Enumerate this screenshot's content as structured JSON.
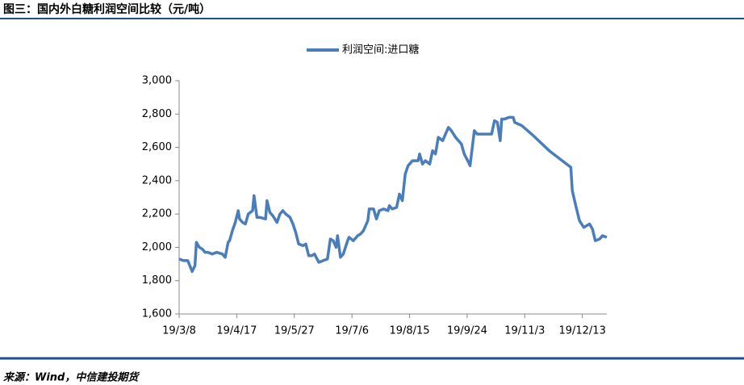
{
  "header_title": "图三：国内外白糖利润空间比较（元/吨）",
  "source": "来源：Wind，中信建投期货",
  "chart_data": {
    "type": "line",
    "x": [
      "19/3/8",
      "19/3/11",
      "19/3/14",
      "19/3/17",
      "19/3/19",
      "19/3/20",
      "19/3/22",
      "19/3/24",
      "19/3/26",
      "19/3/28",
      "19/3/31",
      "19/4/3",
      "19/4/7",
      "19/4/9",
      "19/4/11",
      "19/4/12",
      "19/4/14",
      "19/4/16",
      "19/4/18",
      "19/4/19",
      "19/4/21",
      "19/4/23",
      "19/4/25",
      "19/4/28",
      "19/4/29",
      "19/5/1",
      "19/5/3",
      "19/5/7",
      "19/5/8",
      "19/5/10",
      "19/5/12",
      "19/5/15",
      "19/5/17",
      "19/5/19",
      "19/5/21",
      "19/5/24",
      "19/5/26",
      "19/5/28",
      "19/5/30",
      "19/6/2",
      "19/6/4",
      "19/6/6",
      "19/6/8",
      "19/6/10",
      "19/6/13",
      "19/6/16",
      "19/6/19",
      "19/6/21",
      "19/6/23",
      "19/6/25",
      "19/6/26",
      "19/6/28",
      "19/6/30",
      "19/7/3",
      "19/7/4",
      "19/7/7",
      "19/7/10",
      "19/7/12",
      "19/7/14",
      "19/7/17",
      "19/7/18",
      "19/7/21",
      "19/7/23",
      "19/7/25",
      "19/7/28",
      "19/7/31",
      "19/8/1",
      "19/8/3",
      "19/8/6",
      "19/8/8",
      "19/8/10",
      "19/8/12",
      "19/8/14",
      "19/8/17",
      "19/8/21",
      "19/8/22",
      "19/8/24",
      "19/8/26",
      "19/8/29",
      "19/8/31",
      "19/9/2",
      "19/9/4",
      "19/9/7",
      "19/9/9",
      "19/9/11",
      "19/9/13",
      "19/9/16",
      "19/9/18",
      "19/9/20",
      "19/9/22",
      "19/9/25",
      "19/9/26",
      "19/9/29",
      "19/10/1",
      "19/10/4",
      "19/10/8",
      "19/10/11",
      "19/10/13",
      "19/10/15",
      "19/10/17",
      "19/10/18",
      "19/10/20",
      "19/10/23",
      "19/10/26",
      "19/10/27",
      "19/11/1",
      "19/11/9",
      "19/11/20",
      "19/12/5",
      "19/12/6",
      "19/12/9",
      "19/12/11",
      "19/12/14",
      "19/12/16",
      "19/12/18",
      "19/12/20",
      "19/12/22",
      "19/12/25",
      "19/12/27",
      "19/12/30"
    ],
    "series": [
      {
        "name": "利润空间:进口糖",
        "color": "#4a7ebb",
        "values": [
          1930,
          1920,
          1920,
          1855,
          1890,
          2030,
          2000,
          1990,
          1970,
          1970,
          1960,
          1970,
          1960,
          1940,
          2030,
          2040,
          2100,
          2150,
          2220,
          2170,
          2150,
          2140,
          2200,
          2220,
          2310,
          2180,
          2180,
          2170,
          2280,
          2210,
          2190,
          2150,
          2200,
          2220,
          2200,
          2180,
          2140,
          2090,
          2020,
          2010,
          2020,
          1950,
          1950,
          1960,
          1910,
          1920,
          1930,
          2050,
          2040,
          2000,
          2070,
          1940,
          1960,
          2040,
          2060,
          2040,
          2070,
          2080,
          2100,
          2160,
          2230,
          2230,
          2170,
          2220,
          2230,
          2220,
          2250,
          2230,
          2240,
          2320,
          2280,
          2440,
          2490,
          2520,
          2520,
          2560,
          2500,
          2520,
          2500,
          2580,
          2560,
          2660,
          2640,
          2680,
          2720,
          2700,
          2660,
          2640,
          2620,
          2560,
          2510,
          2490,
          2700,
          2680,
          2680,
          2680,
          2680,
          2760,
          2750,
          2640,
          2770,
          2770,
          2780,
          2780,
          2750,
          2730,
          2670,
          2580,
          2480,
          2340,
          2230,
          2160,
          2120,
          2130,
          2140,
          2110,
          2040,
          2050,
          2070,
          2060
        ]
      }
    ],
    "xlim": [
      "19/3/8",
      "19/12/30"
    ],
    "xticks": [
      "19/3/8",
      "19/4/17",
      "19/5/27",
      "19/7/6",
      "19/8/15",
      "19/9/24",
      "19/11/3",
      "19/12/13"
    ],
    "ylim": [
      1600,
      3000
    ],
    "yticks": [
      {
        "value": 1600,
        "label": "1,600"
      },
      {
        "value": 1800,
        "label": "1,800"
      },
      {
        "value": 2000,
        "label": "2,000"
      },
      {
        "value": 2200,
        "label": "2,200"
      },
      {
        "value": 2400,
        "label": "2,400"
      },
      {
        "value": 2600,
        "label": "2,600"
      },
      {
        "value": 2800,
        "label": "2,800"
      },
      {
        "value": 3000,
        "label": "3,000"
      }
    ],
    "legend": "top"
  }
}
